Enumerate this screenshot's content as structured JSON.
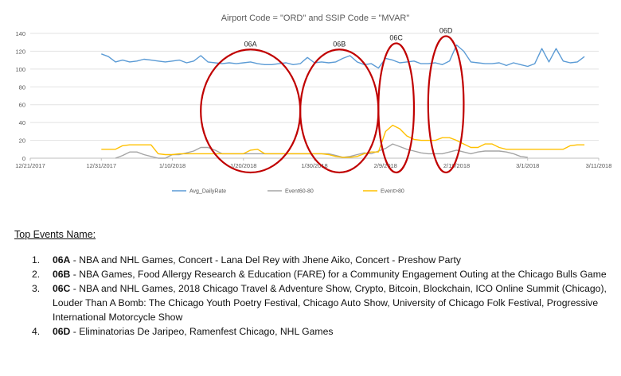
{
  "chart_data": {
    "type": "line",
    "title": "Airport Code = \"ORD\" and SSIP Code = \"MVAR\"",
    "xlabel": "",
    "ylabel": "",
    "ylim": [
      0,
      140
    ],
    "yticks": [
      0,
      20,
      40,
      60,
      80,
      100,
      120,
      140
    ],
    "xlim": [
      "2017-12-21",
      "2018-03-11"
    ],
    "xtick_labels": [
      "12/21/2017",
      "12/31/2017",
      "1/10/2018",
      "1/20/2018",
      "1/30/2018",
      "2/9/2018",
      "2/19/2018",
      "3/1/2018",
      "3/11/2018"
    ],
    "grid": "horizontal",
    "legend_position": "bottom",
    "colors": {
      "Avg_DailyRate": "#5b9bd5",
      "Event60-80": "#a5a5a5",
      "Event>80": "#ffc000",
      "highlight": "#c00000"
    },
    "series": [
      {
        "name": "Avg_DailyRate",
        "x": [
          "2017-12-31",
          "2018-01-01",
          "2018-01-02",
          "2018-01-03",
          "2018-01-04",
          "2018-01-05",
          "2018-01-06",
          "2018-01-07",
          "2018-01-08",
          "2018-01-09",
          "2018-01-10",
          "2018-01-11",
          "2018-01-12",
          "2018-01-13",
          "2018-01-14",
          "2018-01-15",
          "2018-01-16",
          "2018-01-17",
          "2018-01-18",
          "2018-01-19",
          "2018-01-20",
          "2018-01-21",
          "2018-01-22",
          "2018-01-23",
          "2018-01-24",
          "2018-01-25",
          "2018-01-26",
          "2018-01-27",
          "2018-01-28",
          "2018-01-29",
          "2018-01-30",
          "2018-01-31",
          "2018-02-01",
          "2018-02-02",
          "2018-02-03",
          "2018-02-04",
          "2018-02-05",
          "2018-02-06",
          "2018-02-07",
          "2018-02-08",
          "2018-02-09",
          "2018-02-10",
          "2018-02-11",
          "2018-02-12",
          "2018-02-13",
          "2018-02-14",
          "2018-02-15",
          "2018-02-16",
          "2018-02-17",
          "2018-02-18",
          "2018-02-19",
          "2018-02-20",
          "2018-02-21",
          "2018-02-22",
          "2018-02-23",
          "2018-02-24",
          "2018-02-25",
          "2018-02-26",
          "2018-02-27",
          "2018-02-28",
          "2018-03-01",
          "2018-03-02",
          "2018-03-03",
          "2018-03-04",
          "2018-03-05",
          "2018-03-06",
          "2018-03-07",
          "2018-03-08",
          "2018-03-09"
        ],
        "values": [
          117,
          114,
          108,
          110,
          108,
          109,
          111,
          110,
          109,
          108,
          109,
          110,
          107,
          109,
          115,
          108,
          107,
          106,
          107,
          106,
          107,
          108,
          106,
          105,
          105,
          106,
          107,
          105,
          106,
          113,
          107,
          108,
          107,
          108,
          112,
          115,
          108,
          105,
          106,
          101,
          112,
          110,
          107,
          108,
          109,
          106,
          106,
          107,
          105,
          109,
          127,
          120,
          108,
          107,
          106,
          106,
          107,
          104,
          107,
          105,
          103,
          106,
          123,
          108,
          123,
          109,
          107,
          108,
          114
        ]
      },
      {
        "name": "Event60-80",
        "x": [
          "2018-01-02",
          "2018-01-03",
          "2018-01-04",
          "2018-01-05",
          "2018-01-06",
          "2018-01-07",
          "2018-01-08",
          "2018-01-09",
          "2018-01-10",
          "2018-01-11",
          "2018-01-12",
          "2018-01-13",
          "2018-01-14",
          "2018-01-15",
          "2018-01-16",
          "2018-01-17",
          "2018-01-18",
          "2018-01-19",
          "2018-01-20",
          "2018-01-21",
          "2018-01-22",
          "2018-01-23",
          "2018-01-24",
          "2018-01-25",
          "2018-01-26",
          "2018-01-27",
          "2018-01-28",
          "2018-01-29",
          "2018-01-30",
          "2018-01-31",
          "2018-02-01",
          "2018-02-02",
          "2018-02-03",
          "2018-02-04",
          "2018-02-05",
          "2018-02-06",
          "2018-02-07",
          "2018-02-08",
          "2018-02-09",
          "2018-02-10",
          "2018-02-11",
          "2018-02-12",
          "2018-02-13",
          "2018-02-14",
          "2018-02-15",
          "2018-02-16",
          "2018-02-17",
          "2018-02-18",
          "2018-02-19",
          "2018-02-20",
          "2018-02-21",
          "2018-02-22",
          "2018-02-23",
          "2018-02-24",
          "2018-02-25",
          "2018-02-26",
          "2018-02-27",
          "2018-02-28",
          "2018-03-01"
        ],
        "values": [
          0,
          3,
          7,
          7,
          4,
          2,
          0,
          0,
          4,
          4,
          6,
          8,
          12,
          12,
          9,
          5,
          5,
          5,
          5,
          5,
          5,
          5,
          5,
          5,
          5,
          5,
          5,
          5,
          5,
          5,
          5,
          3,
          1,
          2,
          4,
          6,
          5,
          8,
          11,
          16,
          13,
          10,
          8,
          6,
          5,
          5,
          5,
          7,
          9,
          7,
          5,
          7,
          8,
          8,
          8,
          7,
          5,
          2,
          1
        ]
      },
      {
        "name": "Event>80",
        "x": [
          "2017-12-31",
          "2018-01-01",
          "2018-01-02",
          "2018-01-03",
          "2018-01-04",
          "2018-01-05",
          "2018-01-06",
          "2018-01-07",
          "2018-01-08",
          "2018-01-09",
          "2018-01-10",
          "2018-01-11",
          "2018-01-12",
          "2018-01-13",
          "2018-01-14",
          "2018-01-15",
          "2018-01-16",
          "2018-01-17",
          "2018-01-18",
          "2018-01-19",
          "2018-01-20",
          "2018-01-21",
          "2018-01-22",
          "2018-01-23",
          "2018-01-24",
          "2018-01-25",
          "2018-01-26",
          "2018-01-27",
          "2018-01-28",
          "2018-01-29",
          "2018-01-30",
          "2018-01-31",
          "2018-02-01",
          "2018-02-02",
          "2018-02-03",
          "2018-02-04",
          "2018-02-05",
          "2018-02-06",
          "2018-02-07",
          "2018-02-08",
          "2018-02-09",
          "2018-02-10",
          "2018-02-11",
          "2018-02-12",
          "2018-02-13",
          "2018-02-14",
          "2018-02-15",
          "2018-02-16",
          "2018-02-17",
          "2018-02-18",
          "2018-02-19",
          "2018-02-20",
          "2018-02-21",
          "2018-02-22",
          "2018-02-23",
          "2018-02-24",
          "2018-02-25",
          "2018-02-26",
          "2018-02-27",
          "2018-02-28",
          "2018-03-01",
          "2018-03-02",
          "2018-03-03",
          "2018-03-04",
          "2018-03-05",
          "2018-03-06",
          "2018-03-07",
          "2018-03-08",
          "2018-03-09"
        ],
        "values": [
          10,
          10,
          10,
          14,
          15,
          15,
          15,
          15,
          5,
          4,
          4,
          5,
          5,
          5,
          5,
          5,
          5,
          5,
          5,
          5,
          5,
          9,
          10,
          5,
          5,
          5,
          5,
          5,
          5,
          5,
          5,
          5,
          4,
          2,
          1,
          1,
          2,
          5,
          7,
          7,
          30,
          37,
          33,
          25,
          21,
          20,
          20,
          20,
          23,
          23,
          20,
          16,
          12,
          12,
          16,
          16,
          12,
          10,
          10,
          10,
          10,
          10,
          10,
          10,
          10,
          10,
          14,
          15,
          15
        ]
      }
    ],
    "annotations": [
      {
        "label": "06A",
        "x_from": "2018-01-14",
        "x_to": "2018-01-28",
        "y_from": 0,
        "y_to": 113
      },
      {
        "label": "06B",
        "x_from": "2018-01-28",
        "x_to": "2018-02-08",
        "y_from": 0,
        "y_to": 113
      },
      {
        "label": "06C",
        "x_from": "2018-02-08",
        "x_to": "2018-02-13",
        "y_from": 0,
        "y_to": 120
      },
      {
        "label": "06D",
        "x_from": "2018-02-15",
        "x_to": "2018-02-20",
        "y_from": 0,
        "y_to": 128
      }
    ]
  },
  "events": {
    "heading": "Top Events Name:",
    "items": [
      {
        "num": "1.",
        "code": "06A",
        "text": " - NBA and NHL Games, Concert - Lana Del Rey with Jhene Aiko, Concert - Preshow Party"
      },
      {
        "num": "2.",
        "code": "06B",
        "text": " - NBA Games, Food Allergy Research & Education (FARE) for a Community Engagement Outing at the Chicago Bulls Game"
      },
      {
        "num": "3.",
        "code": "06C",
        "text": " - NBA and NHL Games, 2018 Chicago Travel & Adventure Show, Crypto, Bitcoin, Blockchain, ICO Online Summit (Chicago), Louder Than A Bomb: The Chicago Youth Poetry Festival, Chicago Auto Show, University of Chicago Folk Festival, Progressive International Motorcycle Show"
      },
      {
        "num": "4.",
        "code": "06D",
        "text": " - Eliminatorias De Jaripeo, Ramenfest Chicago, NHL Games"
      }
    ]
  }
}
